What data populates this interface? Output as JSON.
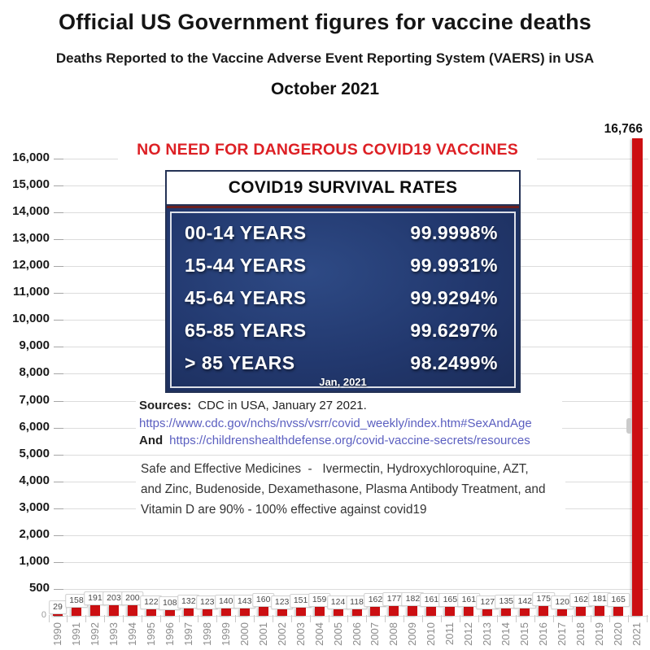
{
  "header": {
    "title": "Official US Government figures for vaccine deaths",
    "subtitle": "Deaths Reported to the Vaccine Adverse Event Reporting System (VAERS) in USA",
    "date": "October 2021"
  },
  "overlay": {
    "headline": "NO NEED FOR DANGEROUS COVID19 VACCINES",
    "survival_box": {
      "title": "COVID19 SURVIVAL RATES",
      "rows": [
        {
          "age": "00-14 YEARS",
          "rate": "99.9998%"
        },
        {
          "age": "15-44 YEARS",
          "rate": "99.9931%"
        },
        {
          "age": "45-64 YEARS",
          "rate": "99.9294%"
        },
        {
          "age": "65-85 YEARS",
          "rate": "99.6297%"
        },
        {
          "age": ">  85 YEARS",
          "rate": "98.2499%"
        }
      ],
      "footer": "Jan, 2021"
    },
    "sources": {
      "label": "Sources:",
      "text": "CDC in USA, January 27 2021.",
      "link1": "https://www.cdc.gov/nchs/nvss/vsrr/covid_weekly/index.htm#SexAndAge",
      "and_label": "And",
      "link2": "https://childrenshealthdefense.org/covid-vaccine-secrets/resources"
    },
    "medicines": {
      "line1": "Safe and Effective Medicines  -   Ivermectin, Hydroxychloroquine, AZT,",
      "line2": "and Zinc, Budenoside, Dexamethasone, Plasma Antibody Treatment, and",
      "line3": "Vitamin D are 90% - 100% effective against covid19"
    }
  },
  "chart_data": {
    "type": "bar",
    "title": "Deaths Reported to the Vaccine Adverse Event Reporting System (VAERS) in USA",
    "categories": [
      "1990",
      "1991",
      "1992",
      "1993",
      "1994",
      "1995",
      "1996",
      "1997",
      "1998",
      "1999",
      "2000",
      "2001",
      "2002",
      "2003",
      "2004",
      "2005",
      "2006",
      "2007",
      "2008",
      "2009",
      "2010",
      "2011",
      "2012",
      "2013",
      "2014",
      "2015",
      "2016",
      "2017",
      "2018",
      "2019",
      "2020",
      "2021"
    ],
    "values": [
      29,
      158,
      191,
      203,
      200,
      122,
      108,
      132,
      123,
      140,
      143,
      160,
      123,
      151,
      159,
      124,
      118,
      162,
      177,
      182,
      161,
      165,
      161,
      127,
      135,
      142,
      175,
      120,
      162,
      181,
      165,
      16766
    ],
    "bar_labels": [
      "29",
      "158",
      "191",
      "203",
      "200",
      "122",
      "108",
      "132",
      "123",
      "140",
      "143",
      "160",
      "123",
      "151",
      "159",
      "124",
      "118",
      "162",
      "177",
      "182",
      "161",
      "165",
      "161",
      "127",
      "135",
      "142",
      "175",
      "120",
      "162",
      "181",
      "165",
      "16,766"
    ],
    "peak_label": "16,766",
    "y_ticks": [
      "16,000",
      "15,000",
      "14,000",
      "13,000",
      "12,000",
      "11,000",
      "10,000",
      "9,000",
      "8,000",
      "7,000",
      "6,000",
      "5,000",
      "4,000",
      "3,000",
      "2,000",
      "1,000",
      "500",
      "0"
    ],
    "ylim": [
      0,
      16766
    ],
    "grid": true,
    "legend": false,
    "xlabel": "",
    "ylabel": "",
    "bar_color": "#cc0f12"
  },
  "colors": {
    "bar_red": "#cc0f12",
    "headline_red": "#dd2025",
    "navy_box": "#22386e",
    "navy_border": "#243255",
    "link_blue": "#5b5fc0",
    "grid_gray": "#dcdcdc",
    "year_label_gray": "#8c8c8c"
  }
}
